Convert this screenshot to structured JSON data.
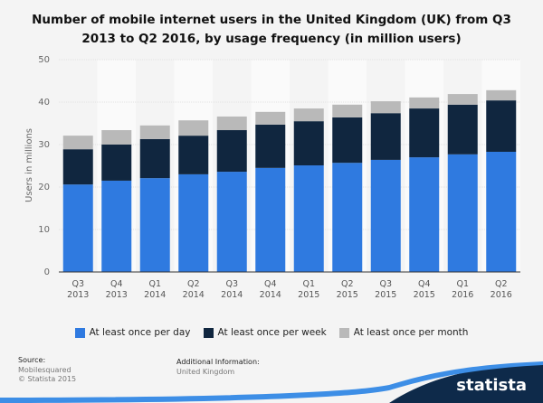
{
  "chart_data": {
    "type": "stacked-bar",
    "title": "Number of mobile internet users in the United Kingdom (UK) from Q3 2013 to Q2 2016, by usage frequency (in million users)",
    "y_label": "Users in millions",
    "categories": [
      "Q3 2013",
      "Q4 2013",
      "Q1 2014",
      "Q2 2014",
      "Q3 2014",
      "Q4 2014",
      "Q1 2015",
      "Q2 2015",
      "Q3 2015",
      "Q4 2015",
      "Q1 2016",
      "Q2 2016"
    ],
    "series": [
      {
        "name": "At least once per day",
        "color": "#2f7ae0",
        "values": [
          20.6,
          21.5,
          22.1,
          23.0,
          23.6,
          24.5,
          25.1,
          25.7,
          26.4,
          27.0,
          27.7,
          28.3
        ]
      },
      {
        "name": "At least once per week",
        "color": "#10263f",
        "values": [
          8.3,
          8.5,
          9.2,
          9.1,
          9.8,
          10.2,
          10.4,
          10.7,
          11.0,
          11.5,
          11.7,
          12.1
        ]
      },
      {
        "name": "At least once per month",
        "color": "#b9b9b9",
        "values": [
          3.2,
          3.4,
          3.2,
          3.6,
          3.2,
          3.0,
          3.0,
          3.0,
          2.8,
          2.6,
          2.5,
          2.4
        ]
      }
    ],
    "ylim": [
      0,
      50
    ],
    "yticks": [
      0,
      10,
      20,
      30,
      40,
      50
    ],
    "grid": true,
    "legend": "bottom"
  },
  "footer": {
    "source_label": "Source:",
    "source": "Mobilesquared",
    "copyright": "© Statista 2015",
    "info_label": "Additional Information:",
    "info": "United Kingdom",
    "brand": "statista"
  }
}
